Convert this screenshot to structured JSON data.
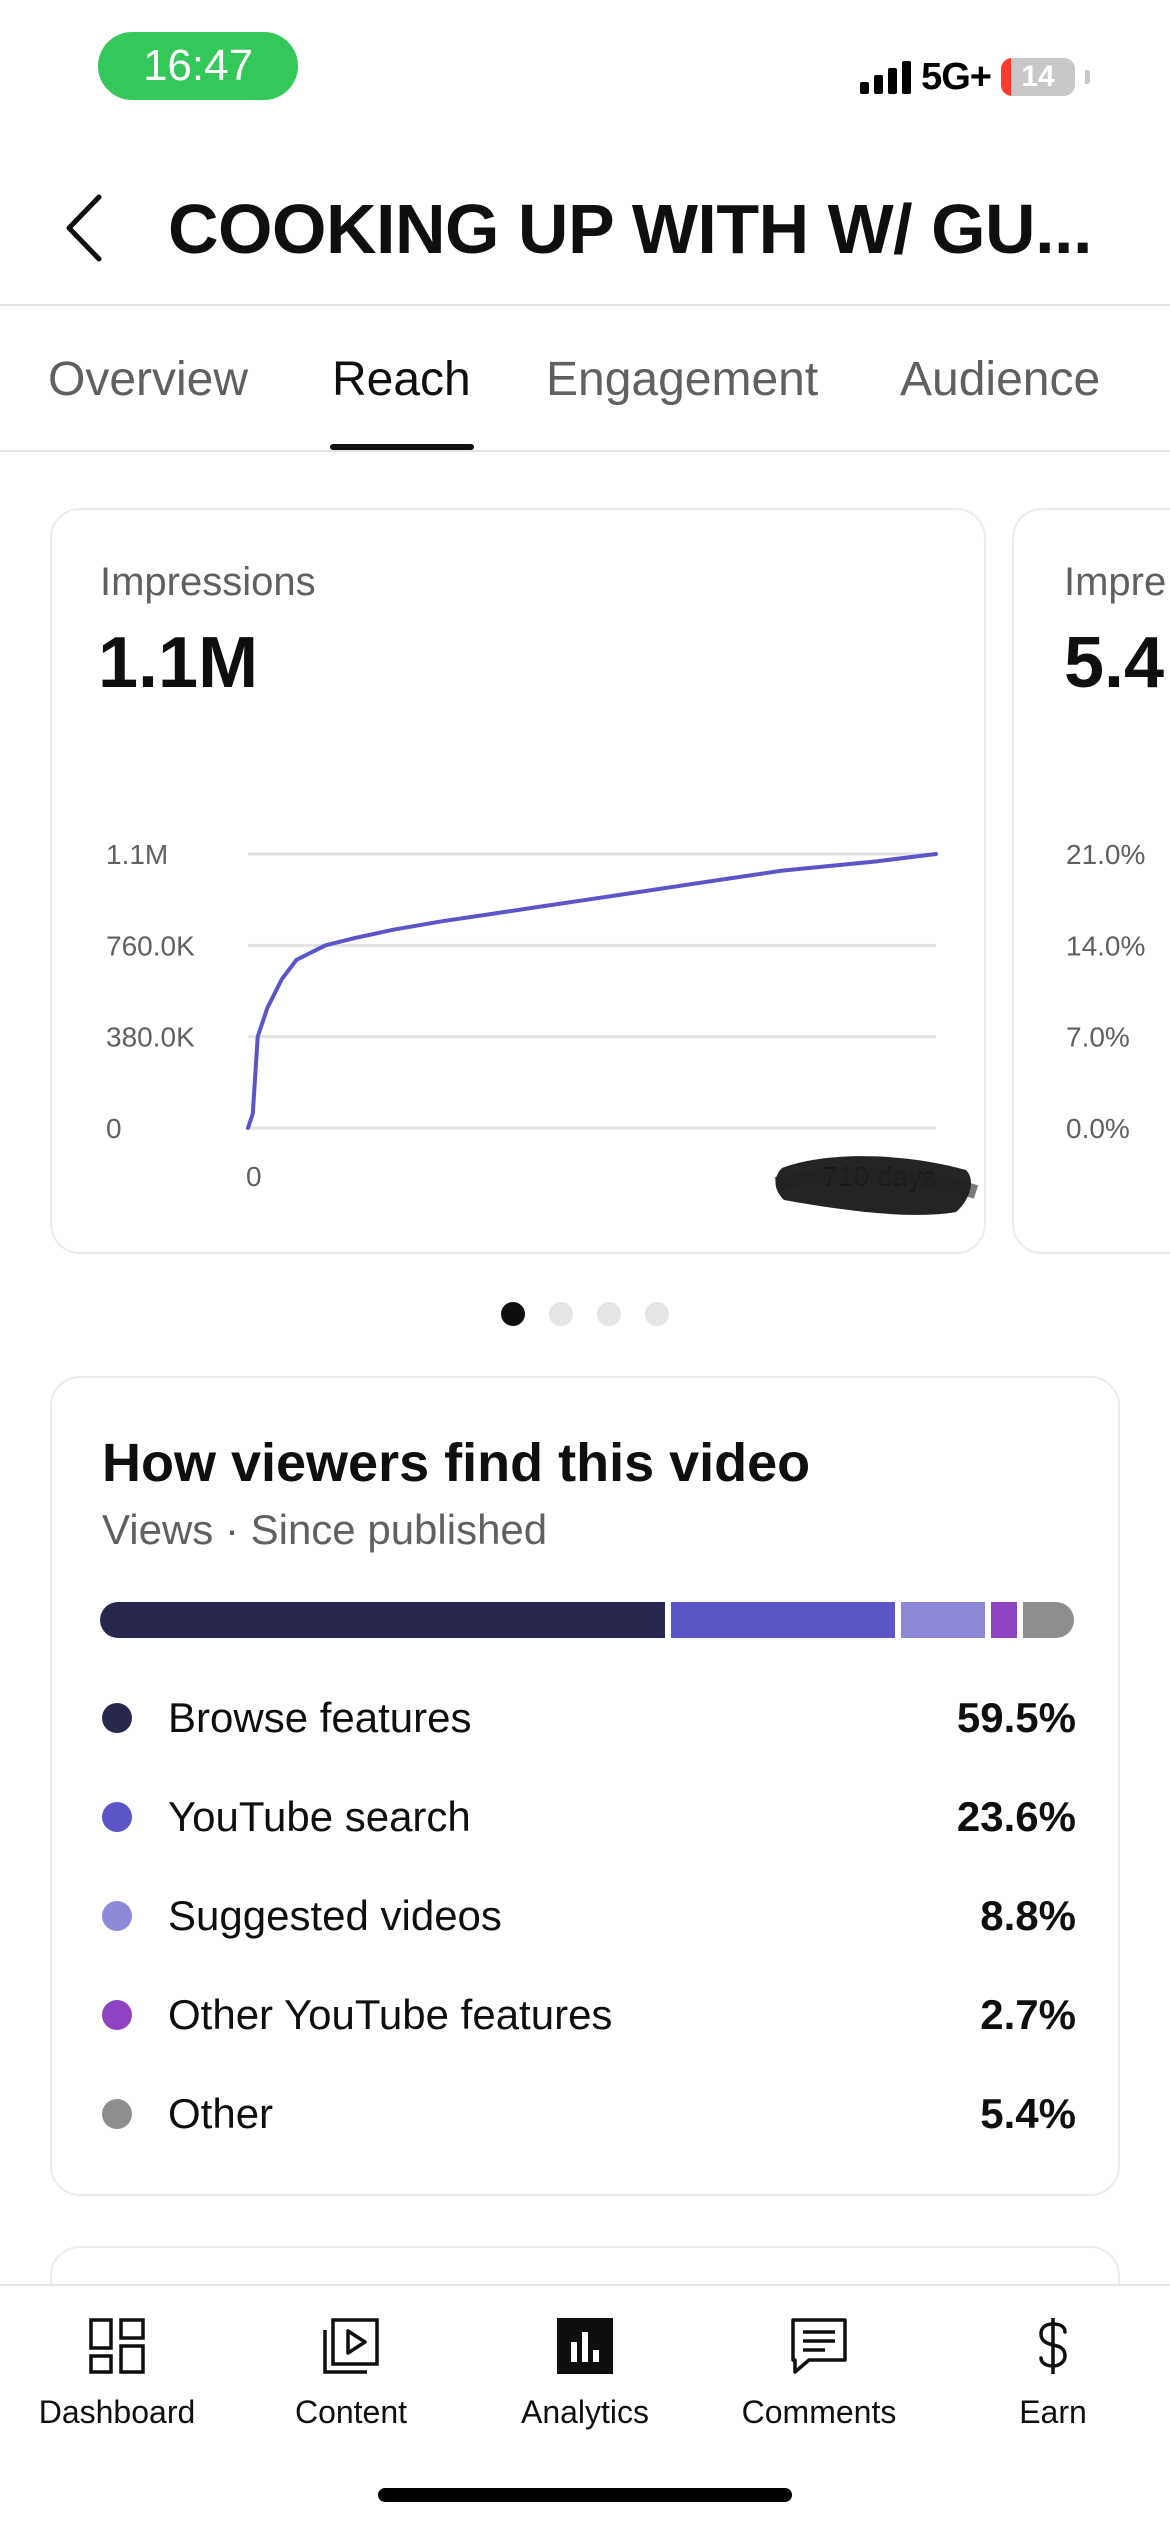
{
  "status_bar": {
    "time": "16:47",
    "network": "5G+",
    "battery_level": "14",
    "battery_fraction": 0.14,
    "time_pill_color": "#34c759"
  },
  "header": {
    "back_icon": "chevron-left-icon",
    "title": "COOKING UP WITH W/ GU..."
  },
  "tabs": [
    {
      "label": "Overview",
      "active": false
    },
    {
      "label": "Reach",
      "active": true
    },
    {
      "label": "Engagement",
      "active": false
    },
    {
      "label": "Audience",
      "active": false
    }
  ],
  "metric_cards": [
    {
      "label": "Impressions",
      "value": "1.1M"
    },
    {
      "label": "Impre",
      "value": "5.4"
    }
  ],
  "chart_data": [
    {
      "type": "line",
      "title": "Impressions",
      "line_color": "#5b55c8",
      "x_tick_labels": [
        "0",
        "710 days"
      ],
      "y_tick_labels": [
        "0",
        "380.0K",
        "760.0K",
        "1.1M"
      ],
      "xlim": [
        0,
        710
      ],
      "ylim": [
        0,
        1140000
      ],
      "grid": true,
      "x": [
        0,
        5,
        10,
        20,
        35,
        50,
        80,
        110,
        150,
        200,
        250,
        300,
        350,
        400,
        450,
        500,
        550,
        600,
        650,
        710
      ],
      "values": [
        0,
        60000,
        380000,
        500000,
        620000,
        700000,
        760000,
        790000,
        825000,
        860000,
        890000,
        920000,
        950000,
        980000,
        1010000,
        1040000,
        1070000,
        1090000,
        1110000,
        1140000
      ]
    },
    {
      "type": "line",
      "title": "",
      "y_tick_labels": [
        "0.0%",
        "7.0%",
        "14.0%",
        "21.0%"
      ],
      "ylim": [
        0,
        21
      ],
      "grid": true,
      "partially_visible": true
    }
  ],
  "carousel": {
    "count": 4,
    "active_index": 0
  },
  "traffic_sources": {
    "title": "How viewers find this video",
    "subtitle": "Views · Since published",
    "items": [
      {
        "label": "Browse features",
        "value": "59.5%",
        "percent": 59.5,
        "color": "#28284f"
      },
      {
        "label": "YouTube search",
        "value": "23.6%",
        "percent": 23.6,
        "color": "#5b55c8"
      },
      {
        "label": "Suggested videos",
        "value": "8.8%",
        "percent": 8.8,
        "color": "#8e89d9"
      },
      {
        "label": "Other YouTube features",
        "value": "2.7%",
        "percent": 2.7,
        "color": "#8e44c0"
      },
      {
        "label": "Other",
        "value": "5.4%",
        "percent": 5.4,
        "color": "#8e8e8e"
      }
    ]
  },
  "bottom_nav": [
    {
      "label": "Dashboard",
      "icon": "dashboard-icon",
      "active": false
    },
    {
      "label": "Content",
      "icon": "content-icon",
      "active": false
    },
    {
      "label": "Analytics",
      "icon": "analytics-icon",
      "active": true
    },
    {
      "label": "Comments",
      "icon": "comments-icon",
      "active": false
    },
    {
      "label": "Earn",
      "icon": "earn-icon",
      "active": false
    }
  ]
}
